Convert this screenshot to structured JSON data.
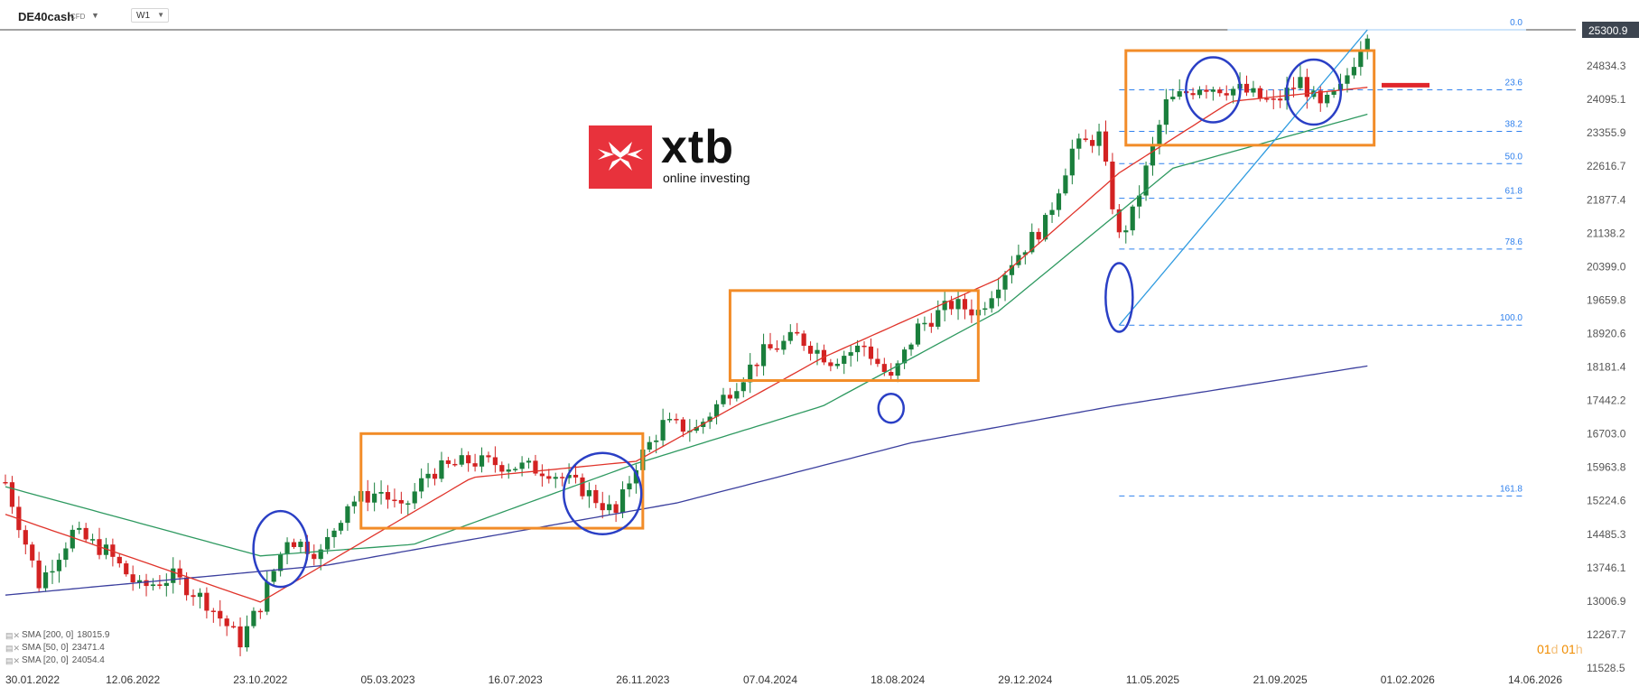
{
  "toolbar": {
    "symbol": "DE40cash",
    "type": "CFD",
    "timeframe": "W1"
  },
  "logo": {
    "name": "xtb",
    "tagline": "online investing"
  },
  "legend": [
    {
      "label": "SMA [200, 0]",
      "value": "18015.9",
      "color": "#3b3f9e"
    },
    {
      "label": "SMA [50, 0]",
      "value": "23471.4",
      "color": "#2e9960"
    },
    {
      "label": "SMA [20, 0]",
      "value": "24054.4",
      "color": "#e0342b"
    }
  ],
  "countdown": {
    "days": "01",
    "days_unit": "d",
    "hours": "01",
    "hours_unit": "h"
  },
  "colors": {
    "up": "#1a7f3c",
    "down": "#d32222",
    "box": "#f28c28",
    "circle": "#2a3fc5",
    "fib": "#2f80ed"
  },
  "chart_data": {
    "type": "candlestick",
    "timeframe": "W1",
    "y_axis_labels": [
      "25300.9",
      "24834.3",
      "24095.1",
      "23355.9",
      "22616.7",
      "21877.4",
      "21138.2",
      "20399.0",
      "19659.8",
      "18920.6",
      "18181.4",
      "17442.2",
      "16703.0",
      "15963.8",
      "15224.6",
      "14485.3",
      "13746.1",
      "13006.9",
      "12267.7",
      "11528.5"
    ],
    "x_axis_labels": [
      "30.01.2022",
      "12.06.2022",
      "23.10.2022",
      "05.03.2023",
      "16.07.2023",
      "26.11.2023",
      "07.04.2024",
      "18.08.2024",
      "29.12.2024",
      "11.05.2025",
      "21.09.2025",
      "01.02.2026",
      "14.06.2026"
    ],
    "last_price": "25300.9",
    "ylim": [
      11528.5,
      25300.9
    ],
    "price_series": [
      [
        "2022-01-30",
        15500
      ],
      [
        "2022-03-06",
        13300
      ],
      [
        "2022-04-10",
        14400
      ],
      [
        "2022-05-15",
        14000
      ],
      [
        "2022-06-19",
        13200
      ],
      [
        "2022-07-24",
        13450
      ],
      [
        "2022-08-28",
        12900
      ],
      [
        "2022-10-02",
        12050
      ],
      [
        "2022-10-23",
        12850
      ],
      [
        "2022-11-20",
        14300
      ],
      [
        "2022-12-25",
        13950
      ],
      [
        "2023-01-22",
        15050
      ],
      [
        "2023-02-26",
        15300
      ],
      [
        "2023-03-19",
        14850
      ],
      [
        "2023-04-16",
        15700
      ],
      [
        "2023-05-28",
        15950
      ],
      [
        "2023-06-25",
        15900
      ],
      [
        "2023-07-16",
        15850
      ],
      [
        "2023-08-20",
        15750
      ],
      [
        "2023-09-24",
        15350
      ],
      [
        "2023-10-29",
        14800
      ],
      [
        "2023-11-19",
        15900
      ],
      [
        "2023-12-17",
        16750
      ],
      [
        "2024-01-21",
        16650
      ],
      [
        "2024-02-25",
        17500
      ],
      [
        "2024-03-31",
        18300
      ],
      [
        "2024-05-05",
        18650
      ],
      [
        "2024-06-09",
        18150
      ],
      [
        "2024-07-14",
        18450
      ],
      [
        "2024-08-11",
        17700
      ],
      [
        "2024-09-08",
        18850
      ],
      [
        "2024-10-13",
        19350
      ],
      [
        "2024-11-10",
        19200
      ],
      [
        "2024-12-15",
        20300
      ],
      [
        "2025-01-19",
        21100
      ],
      [
        "2025-02-16",
        22700
      ],
      [
        "2025-03-16",
        23000
      ],
      [
        "2025-04-06",
        20800
      ],
      [
        "2025-04-20",
        21300
      ],
      [
        "2025-05-25",
        23700
      ],
      [
        "2025-06-29",
        24100
      ],
      [
        "2025-08-10",
        24000
      ],
      [
        "2025-09-14",
        23700
      ],
      [
        "2025-10-12",
        24200
      ],
      [
        "2025-11-02",
        23600
      ],
      [
        "2025-11-23",
        24000
      ],
      [
        "2025-12-21",
        25300
      ]
    ],
    "sma200": [
      [
        "2022-01-30",
        13050
      ],
      [
        "2023-01-01",
        13700
      ],
      [
        "2024-01-01",
        15050
      ],
      [
        "2024-09-01",
        16350
      ],
      [
        "2025-04-01",
        17150
      ],
      [
        "2025-12-21",
        18015.9
      ]
    ],
    "sma50": [
      [
        "2022-01-30",
        15400
      ],
      [
        "2022-10-23",
        13900
      ],
      [
        "2023-04-01",
        14150
      ],
      [
        "2023-11-19",
        15900
      ],
      [
        "2024-06-01",
        17150
      ],
      [
        "2024-12-01",
        19200
      ],
      [
        "2025-06-01",
        22300
      ],
      [
        "2025-12-21",
        23471.4
      ]
    ],
    "sma20": [
      [
        "2022-01-30",
        14800
      ],
      [
        "2022-10-23",
        12900
      ],
      [
        "2023-06-01",
        15600
      ],
      [
        "2023-11-19",
        15950
      ],
      [
        "2024-06-01",
        18200
      ],
      [
        "2024-12-01",
        19900
      ],
      [
        "2025-04-06",
        22200
      ],
      [
        "2025-08-01",
        23750
      ],
      [
        "2025-12-21",
        24054.4
      ]
    ],
    "fibonacci": {
      "levels": [
        {
          "label": "0.0",
          "price": 25300.9
        },
        {
          "label": "23.6",
          "price": 24000
        },
        {
          "label": "38.2",
          "price": 23100
        },
        {
          "label": "50.0",
          "price": 22400
        },
        {
          "label": "61.8",
          "price": 21650
        },
        {
          "label": "78.6",
          "price": 20550
        },
        {
          "label": "100.0",
          "price": 18900
        },
        {
          "label": "161.8",
          "price": 15200
        }
      ]
    },
    "annotations": {
      "consolidation_boxes": [
        {
          "from": "2023-02-05",
          "to": "2023-11-26",
          "low": 14500,
          "high": 16550
        },
        {
          "from": "2024-02-25",
          "to": "2024-11-10",
          "low": 17700,
          "high": 19650
        },
        {
          "from": "2025-04-13",
          "to": "2025-12-28",
          "low": 22800,
          "high": 24850
        }
      ],
      "circles": [
        {
          "date": "2022-11-13",
          "price": 14050
        },
        {
          "date": "2023-10-15",
          "price": 15250
        },
        {
          "date": "2024-08-11",
          "price": 17100
        },
        {
          "date": "2025-04-06",
          "price": 19500
        },
        {
          "date": "2025-07-13",
          "price": 24000
        },
        {
          "date": "2025-10-26",
          "price": 23950
        }
      ],
      "trendline": {
        "from": [
          "2025-04-06",
          18900
        ],
        "to": [
          "2025-12-21",
          25300.9
        ]
      },
      "target_marker": {
        "price": 24100
      }
    }
  }
}
